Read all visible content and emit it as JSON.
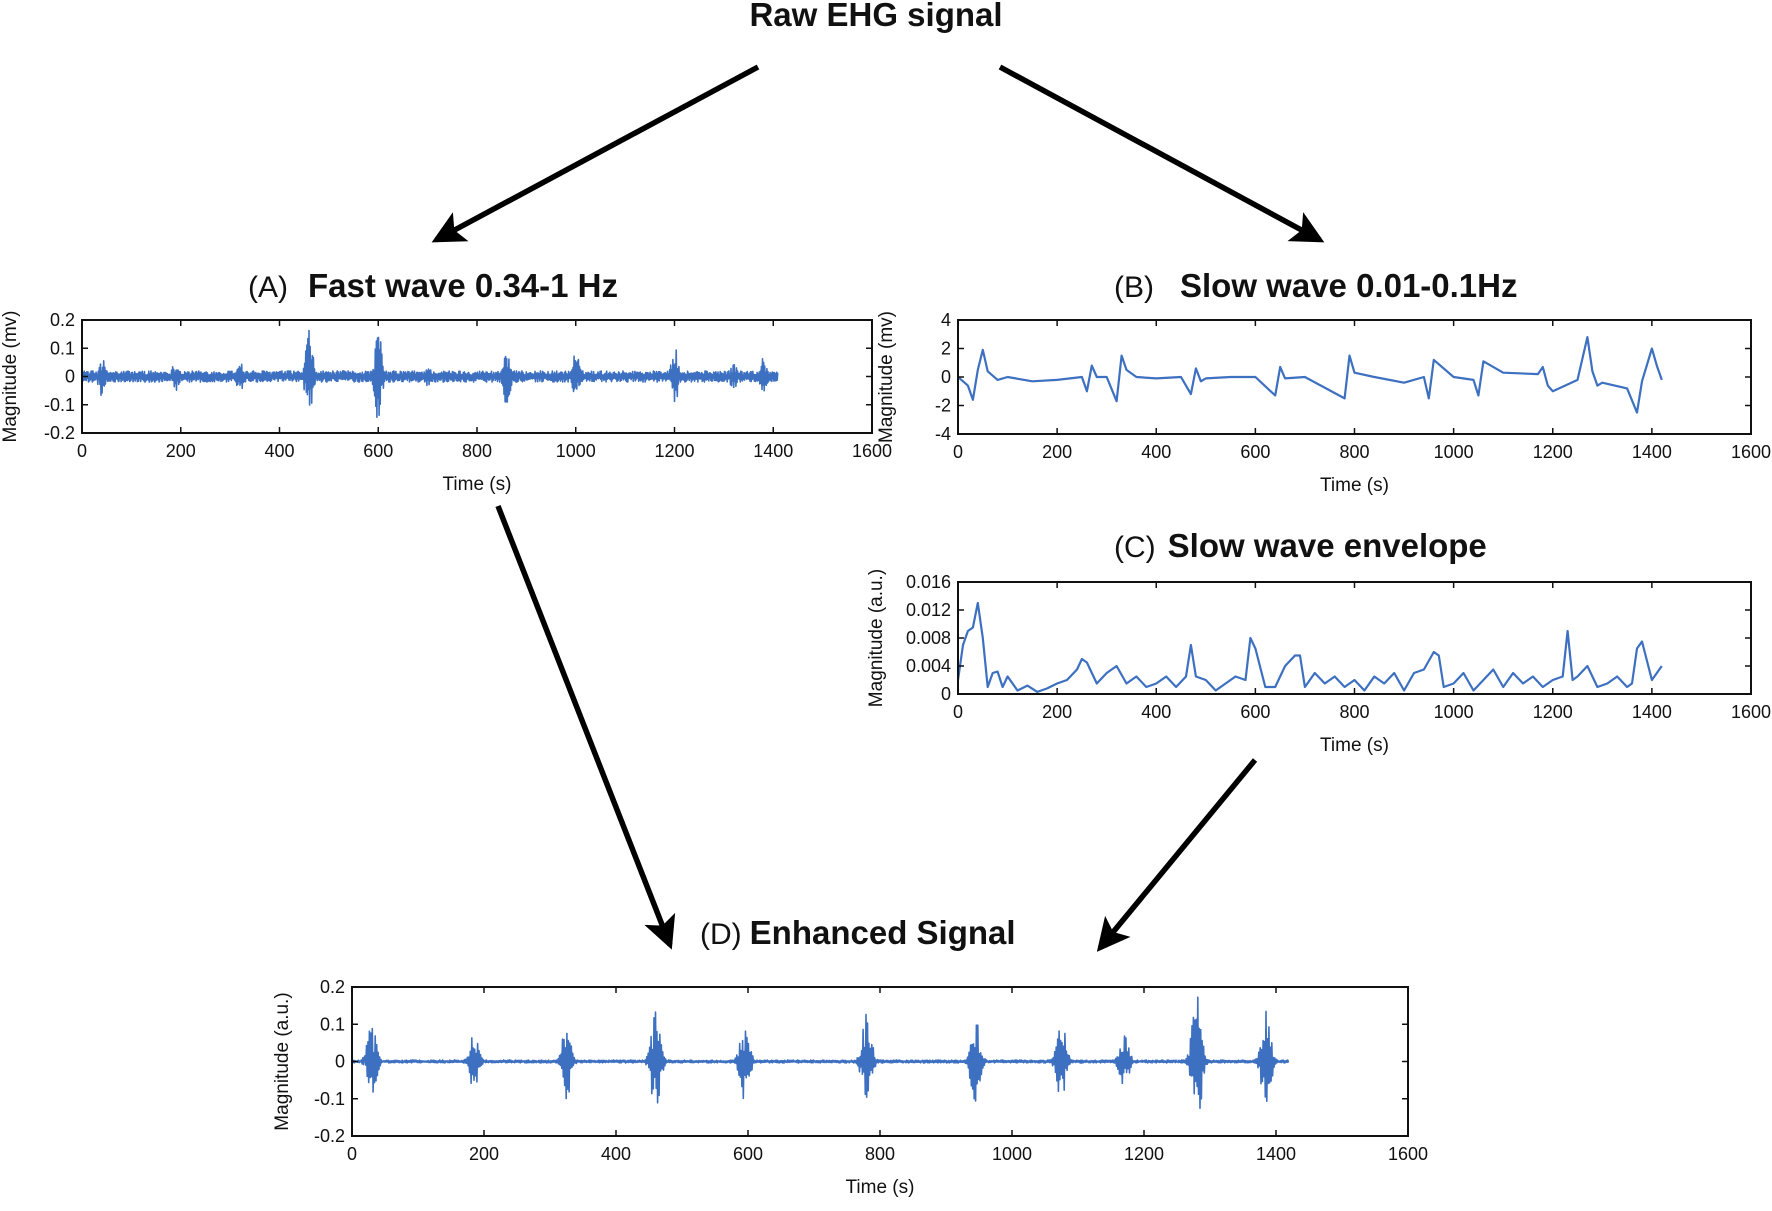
{
  "title": "Raw EHG signal",
  "colors": {
    "signal": "#3d70c0",
    "axes": "#111111",
    "arrows": "#000000"
  },
  "panels": {
    "A": {
      "prefix": "(A)",
      "title": "Fast wave 0.34-1 Hz"
    },
    "B": {
      "prefix": "(B)",
      "title": "Slow wave 0.01-0.1Hz"
    },
    "C": {
      "prefix": "(C)",
      "title": "Slow wave envelope"
    },
    "D": {
      "prefix": "(D)",
      "title": "Enhanced Signal"
    }
  },
  "chart_data": [
    {
      "id": "A",
      "type": "line",
      "xlabel": "Time (s)",
      "ylabel": "Magnitude (mv)",
      "xlim": [
        0,
        1600
      ],
      "ylim": [
        -0.2,
        0.2
      ],
      "xticks": [
        0,
        200,
        400,
        600,
        800,
        1000,
        1200,
        1400,
        1600
      ],
      "xtick_labels": [
        "0",
        "200",
        "400",
        "600",
        "800",
        "1000",
        "1200",
        "1400",
        "1600"
      ],
      "yticks": [
        -0.2,
        -0.1,
        0,
        0.1,
        0.2
      ],
      "ytick_labels": [
        "-0.2",
        "-0.1",
        "0",
        "0.1",
        "0.2"
      ],
      "x_end": 1410,
      "baseline_amplitude": 0.02,
      "bursts": [
        [
          40,
          0.07
        ],
        [
          190,
          0.06
        ],
        [
          320,
          0.06
        ],
        [
          460,
          0.17
        ],
        [
          600,
          0.17
        ],
        [
          700,
          0.04
        ],
        [
          860,
          0.11
        ],
        [
          1000,
          0.09
        ],
        [
          1200,
          0.11
        ],
        [
          1320,
          0.05
        ],
        [
          1380,
          0.07
        ]
      ]
    },
    {
      "id": "B",
      "type": "line",
      "xlabel": "Time (s)",
      "ylabel": "Magnitude (mv)",
      "xlim": [
        0,
        1600
      ],
      "ylim": [
        -4,
        4
      ],
      "xticks": [
        0,
        200,
        400,
        600,
        800,
        1000,
        1200,
        1400,
        1600
      ],
      "xtick_labels": [
        "0",
        "200",
        "400",
        "600",
        "800",
        "1000",
        "1200",
        "1400",
        "1600"
      ],
      "yticks": [
        -4,
        -2,
        0,
        2,
        4
      ],
      "ytick_labels": [
        "-4",
        "-2",
        "0",
        "2",
        "4"
      ],
      "x": [
        0,
        10,
        20,
        30,
        40,
        50,
        60,
        80,
        100,
        150,
        200,
        250,
        260,
        270,
        280,
        300,
        320,
        330,
        340,
        360,
        400,
        450,
        470,
        480,
        490,
        500,
        550,
        600,
        640,
        650,
        660,
        700,
        780,
        790,
        800,
        840,
        900,
        940,
        950,
        960,
        1000,
        1040,
        1050,
        1060,
        1100,
        1170,
        1180,
        1190,
        1200,
        1250,
        1270,
        1280,
        1290,
        1300,
        1350,
        1370,
        1380,
        1400,
        1410,
        1420
      ],
      "y": [
        0,
        -0.3,
        -0.6,
        -1.6,
        0.5,
        1.9,
        0.4,
        -0.2,
        0,
        -0.3,
        -0.2,
        0,
        -1.0,
        0.8,
        0,
        0,
        -1.7,
        1.5,
        0.5,
        0,
        -0.1,
        0,
        -1.2,
        0.6,
        -0.3,
        -0.1,
        0,
        0,
        -1.3,
        0.7,
        -0.1,
        0,
        -1.5,
        1.5,
        0.3,
        0,
        -0.4,
        0,
        -1.5,
        1.2,
        0,
        -0.2,
        -1.3,
        1.1,
        0.3,
        0.2,
        0.7,
        -0.6,
        -1.0,
        -0.2,
        2.8,
        0.4,
        -0.6,
        -0.4,
        -0.8,
        -2.5,
        -0.3,
        2.0,
        0.8,
        -0.2
      ]
    },
    {
      "id": "C",
      "type": "line",
      "xlabel": "Time (s)",
      "ylabel": "Magnitude (a.u.)",
      "xlim": [
        0,
        1600
      ],
      "ylim": [
        0,
        0.016
      ],
      "xticks": [
        0,
        200,
        400,
        600,
        800,
        1000,
        1200,
        1400,
        1600
      ],
      "xtick_labels": [
        "0",
        "200",
        "400",
        "600",
        "800",
        "1000",
        "1200",
        "1400",
        "1600"
      ],
      "yticks": [
        0,
        0.004,
        0.008,
        0.012,
        0.016
      ],
      "ytick_labels": [
        "0",
        "0.004",
        "0.008",
        "0.012",
        "0.016"
      ],
      "x": [
        0,
        10,
        20,
        30,
        40,
        50,
        60,
        70,
        80,
        90,
        100,
        120,
        140,
        160,
        180,
        200,
        220,
        240,
        250,
        260,
        280,
        300,
        320,
        340,
        360,
        380,
        400,
        420,
        440,
        460,
        470,
        480,
        500,
        520,
        540,
        560,
        580,
        590,
        600,
        620,
        640,
        660,
        680,
        690,
        700,
        720,
        740,
        760,
        780,
        800,
        820,
        840,
        860,
        880,
        900,
        920,
        940,
        960,
        970,
        980,
        1000,
        1020,
        1040,
        1060,
        1080,
        1100,
        1120,
        1140,
        1160,
        1180,
        1200,
        1220,
        1230,
        1240,
        1250,
        1270,
        1290,
        1310,
        1330,
        1350,
        1360,
        1370,
        1380,
        1400,
        1420
      ],
      "y": [
        0.002,
        0.007,
        0.009,
        0.0095,
        0.013,
        0.008,
        0.001,
        0.003,
        0.0032,
        0.001,
        0.0025,
        0.0005,
        0.0012,
        0.0003,
        0.0008,
        0.0015,
        0.002,
        0.0035,
        0.005,
        0.0045,
        0.0015,
        0.003,
        0.004,
        0.0015,
        0.0025,
        0.001,
        0.0015,
        0.0025,
        0.001,
        0.0025,
        0.007,
        0.0025,
        0.002,
        0.0005,
        0.0015,
        0.0025,
        0.002,
        0.008,
        0.0065,
        0.001,
        0.001,
        0.004,
        0.0055,
        0.0055,
        0.001,
        0.003,
        0.0015,
        0.0025,
        0.001,
        0.002,
        0.0005,
        0.0025,
        0.0015,
        0.003,
        0.0005,
        0.003,
        0.0035,
        0.006,
        0.0055,
        0.001,
        0.0015,
        0.003,
        0.0005,
        0.002,
        0.0035,
        0.001,
        0.003,
        0.0015,
        0.0025,
        0.001,
        0.002,
        0.0025,
        0.009,
        0.002,
        0.0025,
        0.004,
        0.001,
        0.0015,
        0.0025,
        0.001,
        0.0015,
        0.0065,
        0.0075,
        0.002,
        0.004
      ]
    },
    {
      "id": "D",
      "type": "line",
      "xlabel": "Time (s)",
      "ylabel": "Magnitude (a.u.)",
      "xlim": [
        0,
        1600
      ],
      "ylim": [
        -0.2,
        0.2
      ],
      "xticks": [
        0,
        200,
        400,
        600,
        800,
        1000,
        1200,
        1400,
        1600
      ],
      "xtick_labels": [
        "0",
        "200",
        "400",
        "600",
        "800",
        "1000",
        "1200",
        "1400",
        "1600"
      ],
      "yticks": [
        -0.2,
        -0.1,
        0,
        0.1,
        0.2
      ],
      "ytick_labels": [
        "-0.2",
        "-0.1",
        "0",
        "0.1",
        "0.2"
      ],
      "x_end": 1420,
      "baseline_amplitude": 0.004,
      "bursts": [
        [
          30,
          0.1
        ],
        [
          185,
          0.08
        ],
        [
          325,
          0.1
        ],
        [
          460,
          0.14
        ],
        [
          595,
          0.11
        ],
        [
          780,
          0.14
        ],
        [
          945,
          0.12
        ],
        [
          1075,
          0.11
        ],
        [
          1170,
          0.07
        ],
        [
          1280,
          0.2
        ],
        [
          1385,
          0.14
        ]
      ]
    }
  ]
}
